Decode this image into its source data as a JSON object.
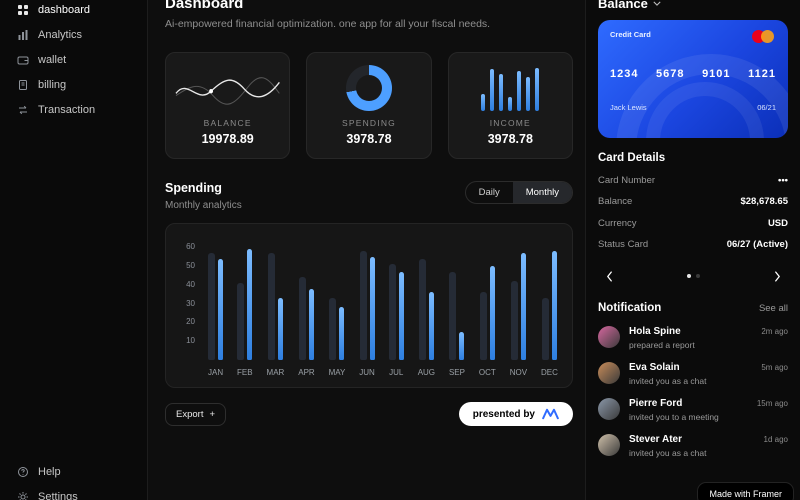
{
  "colors": {
    "accent_blue": "#4d9fff",
    "bar_secondary": "#252b36",
    "card_blue_start": "#2f6bff",
    "card_blue_end": "#0b2fb8",
    "mastercard_red": "#eb001b",
    "mastercard_orange": "#f79e1b"
  },
  "sidebar": {
    "items": [
      {
        "label": "dashboard"
      },
      {
        "label": "Analytics"
      },
      {
        "label": "wallet"
      },
      {
        "label": "billing"
      },
      {
        "label": "Transaction"
      }
    ],
    "footer_items": [
      {
        "label": "Help"
      },
      {
        "label": "Settings"
      }
    ]
  },
  "header": {
    "title": "Dashboard",
    "subtitle": "Ai-empowered financial optimization. one app for all your fiscal needs."
  },
  "stat_cards": [
    {
      "label": "BALANCE",
      "value": "19978.89"
    },
    {
      "label": "SPENDING",
      "value": "3978.78",
      "donut_percent": 72
    },
    {
      "label": "INCOME",
      "value": "3978.78",
      "bars": [
        22,
        55,
        48,
        18,
        52,
        44,
        56
      ]
    }
  ],
  "spending": {
    "title": "Spending",
    "subtitle": "Monthly analytics",
    "toggle": {
      "daily": "Daily",
      "monthly": "Monthly",
      "active": "Monthly"
    }
  },
  "chart_data": {
    "type": "bar",
    "title": "Spending",
    "subtitle": "Monthly analytics",
    "categories": [
      "JAN",
      "FEB",
      "MAR",
      "APR",
      "MAY",
      "JUN",
      "JUL",
      "AUG",
      "SEP",
      "OCT",
      "NOV",
      "DEC"
    ],
    "series": [
      {
        "name": "secondary",
        "color": "#252b36",
        "values": [
          57,
          41,
          57,
          44,
          33,
          58,
          51,
          54,
          47,
          36,
          42,
          33
        ]
      },
      {
        "name": "primary",
        "color": "#4d9fff",
        "values": [
          54,
          59,
          33,
          38,
          28,
          55,
          47,
          36,
          15,
          50,
          57,
          58
        ]
      }
    ],
    "yticks": [
      10,
      20,
      30,
      40,
      50,
      60
    ],
    "ylim": [
      0,
      65
    ],
    "grid": false,
    "legend": "none"
  },
  "actions": {
    "export_label": "Export",
    "export_plus": "+"
  },
  "presented_by": {
    "label": "presented by"
  },
  "balance_panel": {
    "title": "Balance",
    "card": {
      "type_label": "Credit Card",
      "number_groups": [
        "1234",
        "5678",
        "9101",
        "1121"
      ],
      "holder": "Jack Lewis",
      "expiry": "06/21"
    },
    "details_title": "Card Details",
    "details": [
      {
        "label": "Card Number",
        "value": "•••"
      },
      {
        "label": "Balance",
        "value": "$28,678.65"
      },
      {
        "label": "Currency",
        "value": "USD"
      },
      {
        "label": "Status Card",
        "value": "06/27 (Active)"
      }
    ],
    "carousel": {
      "dots": 2,
      "active": 0
    }
  },
  "notifications": {
    "title": "Notification",
    "see_all": "See all",
    "items": [
      {
        "name": "Hola Spine",
        "action": "prepared a report",
        "time": "2m ago",
        "avatar_color": "#d6679f"
      },
      {
        "name": "Eva Solain",
        "action": "invited you as a chat",
        "time": "5m ago",
        "avatar_color": "#c98d5a"
      },
      {
        "name": "Pierre Ford",
        "action": "invited you to a meeting",
        "time": "15m ago",
        "avatar_color": "#8a97a8"
      },
      {
        "name": "Stever Ater",
        "action": "invited you as a chat",
        "time": "1d ago",
        "avatar_color": "#cfc0aa"
      }
    ]
  },
  "made_with": "Made with Framer"
}
